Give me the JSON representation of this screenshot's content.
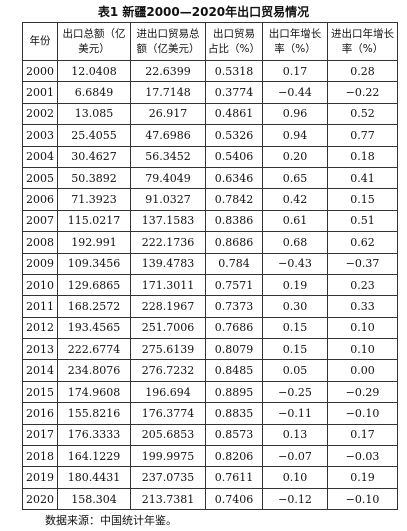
{
  "title": "表1 新疆2000—2020年出口贸易情况",
  "table": {
    "header": [
      "年份",
      "出口总额（亿美元）",
      "进出口贸易总额（亿美元）",
      "出口贸易占比（%）",
      "出口年增长率（%）",
      "进出口年增长率（%）"
    ],
    "rows": [
      [
        "2000",
        "12.0408",
        "22.6399",
        "0.5318",
        "0.17",
        "0.28"
      ],
      [
        "2001",
        "6.6849",
        "17.7148",
        "0.3774",
        "−0.44",
        "−0.22"
      ],
      [
        "2002",
        "13.085",
        "26.917",
        "0.4861",
        "0.96",
        "0.52"
      ],
      [
        "2003",
        "25.4055",
        "47.6986",
        "0.5326",
        "0.94",
        "0.77"
      ],
      [
        "2004",
        "30.4627",
        "56.3452",
        "0.5406",
        "0.20",
        "0.18"
      ],
      [
        "2005",
        "50.3892",
        "79.4049",
        "0.6346",
        "0.65",
        "0.41"
      ],
      [
        "2006",
        "71.3923",
        "91.0327",
        "0.7842",
        "0.42",
        "0.15"
      ],
      [
        "2007",
        "115.0217",
        "137.1583",
        "0.8386",
        "0.61",
        "0.51"
      ],
      [
        "2008",
        "192.991",
        "222.1736",
        "0.8686",
        "0.68",
        "0.62"
      ],
      [
        "2009",
        "109.3456",
        "139.4783",
        "0.784",
        "−0.43",
        "−0.37"
      ],
      [
        "2010",
        "129.6865",
        "171.3011",
        "0.7571",
        "0.19",
        "0.23"
      ],
      [
        "2011",
        "168.2572",
        "228.1967",
        "0.7373",
        "0.30",
        "0.33"
      ],
      [
        "2012",
        "193.4565",
        "251.7006",
        "0.7686",
        "0.15",
        "0.10"
      ],
      [
        "2013",
        "222.6774",
        "275.6139",
        "0.8079",
        "0.15",
        "0.10"
      ],
      [
        "2014",
        "234.8076",
        "276.7232",
        "0.8485",
        "0.05",
        "0.00"
      ],
      [
        "2015",
        "174.9608",
        "196.694",
        "0.8895",
        "−0.25",
        "−0.29"
      ],
      [
        "2016",
        "155.8216",
        "176.3774",
        "0.8835",
        "−0.11",
        "−0.10"
      ],
      [
        "2017",
        "176.3333",
        "205.6853",
        "0.8573",
        "0.13",
        "0.17"
      ],
      [
        "2018",
        "164.1229",
        "199.9975",
        "0.8206",
        "−0.07",
        "−0.03"
      ],
      [
        "2019",
        "180.4431",
        "237.0735",
        "0.7611",
        "0.10",
        "0.19"
      ],
      [
        "2020",
        "158.304",
        "213.7381",
        "0.7406",
        "−0.12",
        "−0.10"
      ]
    ]
  },
  "note": "数据来源：中国统计年鉴。"
}
